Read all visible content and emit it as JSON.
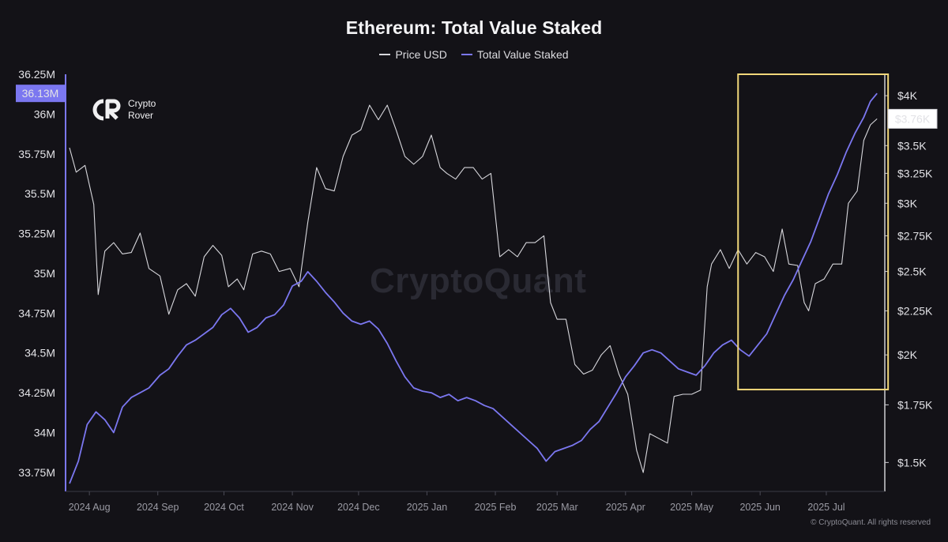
{
  "header": {
    "title": "Ethereum: Total Value Staked"
  },
  "legend": [
    {
      "label": "Price USD",
      "color": "#d7d7dc"
    },
    {
      "label": "Total Value Staked",
      "color": "#7b77f0"
    }
  ],
  "branding": {
    "logo_line1": "Crypto",
    "logo_line2": "Rover",
    "watermark": "CryptoQuant",
    "copyright": "© CryptoQuant. All rights reserved"
  },
  "colors": {
    "background": "#131217",
    "tvs": "#7b77f0",
    "price": "#d7d7dc",
    "highlight": "#f1d77a"
  },
  "chart_data": {
    "type": "line",
    "title": "Ethereum: Total Value Staked",
    "xlabel": "",
    "ylabel_left": "",
    "ylabel_right": "",
    "x_ticks": [
      "2024 Aug",
      "2024 Sep",
      "2024 Oct",
      "2024 Nov",
      "2024 Dec",
      "2025 Jan",
      "2025 Feb",
      "2025 Mar",
      "2025 Apr",
      "2025 May",
      "2025 Jun",
      "2025 Jul"
    ],
    "x_range": [
      "2024-07-23",
      "2025-07-25"
    ],
    "left_axis": {
      "ticks": [
        "33.75M",
        "34M",
        "34.25M",
        "34.5M",
        "34.75M",
        "35M",
        "35.25M",
        "35.5M",
        "35.75M",
        "36M",
        "36.25M"
      ],
      "ylim": [
        33.65,
        36.25
      ],
      "current_label": "36.13M"
    },
    "right_axis": {
      "ticks": [
        "$1.5K",
        "$1.75K",
        "$2K",
        "$2.25K",
        "$2.5K",
        "$2.75K",
        "$3K",
        "$3.25K",
        "$3.5K",
        "$4K"
      ],
      "scale": "log",
      "ylim": [
        1400,
        4200
      ],
      "current_label": "$3.76K"
    },
    "series": [
      {
        "name": "Price USD",
        "axis": "right",
        "points": [
          [
            "2024-07-23",
            3480
          ],
          [
            "2024-07-26",
            3260
          ],
          [
            "2024-07-30",
            3320
          ],
          [
            "2024-08-03",
            2990
          ],
          [
            "2024-08-05",
            2350
          ],
          [
            "2024-08-08",
            2640
          ],
          [
            "2024-08-12",
            2700
          ],
          [
            "2024-08-16",
            2620
          ],
          [
            "2024-08-20",
            2630
          ],
          [
            "2024-08-24",
            2770
          ],
          [
            "2024-08-28",
            2520
          ],
          [
            "2024-09-02",
            2470
          ],
          [
            "2024-09-06",
            2230
          ],
          [
            "2024-09-10",
            2380
          ],
          [
            "2024-09-14",
            2420
          ],
          [
            "2024-09-18",
            2340
          ],
          [
            "2024-09-22",
            2600
          ],
          [
            "2024-09-26",
            2680
          ],
          [
            "2024-09-30",
            2610
          ],
          [
            "2024-10-03",
            2400
          ],
          [
            "2024-10-07",
            2450
          ],
          [
            "2024-10-10",
            2380
          ],
          [
            "2024-10-14",
            2620
          ],
          [
            "2024-10-18",
            2640
          ],
          [
            "2024-10-22",
            2620
          ],
          [
            "2024-10-26",
            2500
          ],
          [
            "2024-10-31",
            2520
          ],
          [
            "2024-11-04",
            2400
          ],
          [
            "2024-11-08",
            2850
          ],
          [
            "2024-11-12",
            3300
          ],
          [
            "2024-11-16",
            3120
          ],
          [
            "2024-11-20",
            3100
          ],
          [
            "2024-11-24",
            3400
          ],
          [
            "2024-11-28",
            3600
          ],
          [
            "2024-12-02",
            3650
          ],
          [
            "2024-12-06",
            3900
          ],
          [
            "2024-12-10",
            3750
          ],
          [
            "2024-12-14",
            3900
          ],
          [
            "2024-12-18",
            3650
          ],
          [
            "2024-12-22",
            3400
          ],
          [
            "2024-12-26",
            3330
          ],
          [
            "2024-12-30",
            3400
          ],
          [
            "2025-01-03",
            3600
          ],
          [
            "2025-01-07",
            3300
          ],
          [
            "2025-01-10",
            3250
          ],
          [
            "2025-01-14",
            3200
          ],
          [
            "2025-01-18",
            3300
          ],
          [
            "2025-01-22",
            3300
          ],
          [
            "2025-01-26",
            3200
          ],
          [
            "2025-01-30",
            3250
          ],
          [
            "2025-02-03",
            2600
          ],
          [
            "2025-02-07",
            2650
          ],
          [
            "2025-02-11",
            2600
          ],
          [
            "2025-02-15",
            2700
          ],
          [
            "2025-02-19",
            2700
          ],
          [
            "2025-02-23",
            2750
          ],
          [
            "2025-02-26",
            2300
          ],
          [
            "2025-03-01",
            2200
          ],
          [
            "2025-03-05",
            2200
          ],
          [
            "2025-03-09",
            1950
          ],
          [
            "2025-03-13",
            1900
          ],
          [
            "2025-03-17",
            1920
          ],
          [
            "2025-03-21",
            2000
          ],
          [
            "2025-03-25",
            2050
          ],
          [
            "2025-03-29",
            1900
          ],
          [
            "2025-04-02",
            1800
          ],
          [
            "2025-04-06",
            1550
          ],
          [
            "2025-04-09",
            1460
          ],
          [
            "2025-04-12",
            1620
          ],
          [
            "2025-04-16",
            1600
          ],
          [
            "2025-04-20",
            1580
          ],
          [
            "2025-04-23",
            1790
          ],
          [
            "2025-04-27",
            1800
          ],
          [
            "2025-05-01",
            1800
          ],
          [
            "2025-05-05",
            1820
          ],
          [
            "2025-05-08",
            2400
          ],
          [
            "2025-05-10",
            2550
          ],
          [
            "2025-05-14",
            2650
          ],
          [
            "2025-05-18",
            2520
          ],
          [
            "2025-05-22",
            2650
          ],
          [
            "2025-05-26",
            2550
          ],
          [
            "2025-05-30",
            2630
          ],
          [
            "2025-06-03",
            2600
          ],
          [
            "2025-06-07",
            2500
          ],
          [
            "2025-06-11",
            2800
          ],
          [
            "2025-06-14",
            2550
          ],
          [
            "2025-06-18",
            2540
          ],
          [
            "2025-06-21",
            2300
          ],
          [
            "2025-06-23",
            2250
          ],
          [
            "2025-06-26",
            2420
          ],
          [
            "2025-06-30",
            2450
          ],
          [
            "2025-07-04",
            2550
          ],
          [
            "2025-07-08",
            2550
          ],
          [
            "2025-07-11",
            3000
          ],
          [
            "2025-07-15",
            3100
          ],
          [
            "2025-07-18",
            3550
          ],
          [
            "2025-07-21",
            3700
          ],
          [
            "2025-07-24",
            3760
          ]
        ]
      },
      {
        "name": "Total Value Staked",
        "axis": "left",
        "points": [
          [
            "2024-07-23",
            33.68
          ],
          [
            "2024-07-27",
            33.82
          ],
          [
            "2024-07-31",
            34.05
          ],
          [
            "2024-08-04",
            34.13
          ],
          [
            "2024-08-08",
            34.08
          ],
          [
            "2024-08-12",
            34.0
          ],
          [
            "2024-08-16",
            34.16
          ],
          [
            "2024-08-20",
            34.22
          ],
          [
            "2024-08-24",
            34.25
          ],
          [
            "2024-08-28",
            34.28
          ],
          [
            "2024-09-02",
            34.36
          ],
          [
            "2024-09-06",
            34.4
          ],
          [
            "2024-09-10",
            34.48
          ],
          [
            "2024-09-14",
            34.55
          ],
          [
            "2024-09-18",
            34.58
          ],
          [
            "2024-09-22",
            34.62
          ],
          [
            "2024-09-26",
            34.66
          ],
          [
            "2024-09-30",
            34.74
          ],
          [
            "2024-10-04",
            34.78
          ],
          [
            "2024-10-08",
            34.72
          ],
          [
            "2024-10-12",
            34.63
          ],
          [
            "2024-10-16",
            34.66
          ],
          [
            "2024-10-20",
            34.72
          ],
          [
            "2024-10-24",
            34.74
          ],
          [
            "2024-10-28",
            34.8
          ],
          [
            "2024-11-01",
            34.92
          ],
          [
            "2024-11-05",
            34.95
          ],
          [
            "2024-11-08",
            35.01
          ],
          [
            "2024-11-12",
            34.95
          ],
          [
            "2024-11-16",
            34.88
          ],
          [
            "2024-11-20",
            34.82
          ],
          [
            "2024-11-24",
            34.75
          ],
          [
            "2024-11-28",
            34.7
          ],
          [
            "2024-12-02",
            34.68
          ],
          [
            "2024-12-06",
            34.7
          ],
          [
            "2024-12-10",
            34.65
          ],
          [
            "2024-12-14",
            34.56
          ],
          [
            "2024-12-18",
            34.45
          ],
          [
            "2024-12-22",
            34.35
          ],
          [
            "2024-12-26",
            34.28
          ],
          [
            "2024-12-30",
            34.26
          ],
          [
            "2025-01-03",
            34.25
          ],
          [
            "2025-01-07",
            34.22
          ],
          [
            "2025-01-11",
            34.24
          ],
          [
            "2025-01-15",
            34.2
          ],
          [
            "2025-01-19",
            34.22
          ],
          [
            "2025-01-23",
            34.2
          ],
          [
            "2025-01-27",
            34.17
          ],
          [
            "2025-01-31",
            34.15
          ],
          [
            "2025-02-04",
            34.1
          ],
          [
            "2025-02-08",
            34.05
          ],
          [
            "2025-02-12",
            34.0
          ],
          [
            "2025-02-16",
            33.95
          ],
          [
            "2025-02-20",
            33.9
          ],
          [
            "2025-02-24",
            33.82
          ],
          [
            "2025-02-28",
            33.88
          ],
          [
            "2025-03-04",
            33.9
          ],
          [
            "2025-03-08",
            33.92
          ],
          [
            "2025-03-12",
            33.95
          ],
          [
            "2025-03-16",
            34.02
          ],
          [
            "2025-03-20",
            34.07
          ],
          [
            "2025-03-24",
            34.16
          ],
          [
            "2025-03-28",
            34.25
          ],
          [
            "2025-04-01",
            34.35
          ],
          [
            "2025-04-05",
            34.42
          ],
          [
            "2025-04-09",
            34.5
          ],
          [
            "2025-04-13",
            34.52
          ],
          [
            "2025-04-17",
            34.5
          ],
          [
            "2025-04-21",
            34.45
          ],
          [
            "2025-04-25",
            34.4
          ],
          [
            "2025-04-29",
            34.38
          ],
          [
            "2025-05-03",
            34.36
          ],
          [
            "2025-05-07",
            34.42
          ],
          [
            "2025-05-11",
            34.5
          ],
          [
            "2025-05-15",
            34.55
          ],
          [
            "2025-05-19",
            34.58
          ],
          [
            "2025-05-23",
            34.52
          ],
          [
            "2025-05-27",
            34.48
          ],
          [
            "2025-05-31",
            34.55
          ],
          [
            "2025-06-04",
            34.62
          ],
          [
            "2025-06-08",
            34.74
          ],
          [
            "2025-06-12",
            34.86
          ],
          [
            "2025-06-16",
            34.96
          ],
          [
            "2025-06-20",
            35.08
          ],
          [
            "2025-06-24",
            35.2
          ],
          [
            "2025-06-28",
            35.35
          ],
          [
            "2025-07-02",
            35.5
          ],
          [
            "2025-07-06",
            35.62
          ],
          [
            "2025-07-10",
            35.76
          ],
          [
            "2025-07-14",
            35.88
          ],
          [
            "2025-07-18",
            35.98
          ],
          [
            "2025-07-21",
            36.08
          ],
          [
            "2025-07-24",
            36.13
          ]
        ]
      }
    ],
    "grid": false,
    "legend_position": "top-center",
    "annotation": {
      "type": "highlight-box",
      "x_range": [
        "2025-05-22",
        "2025-07-29"
      ],
      "left_value_range": [
        34.27,
        36.25
      ]
    }
  }
}
